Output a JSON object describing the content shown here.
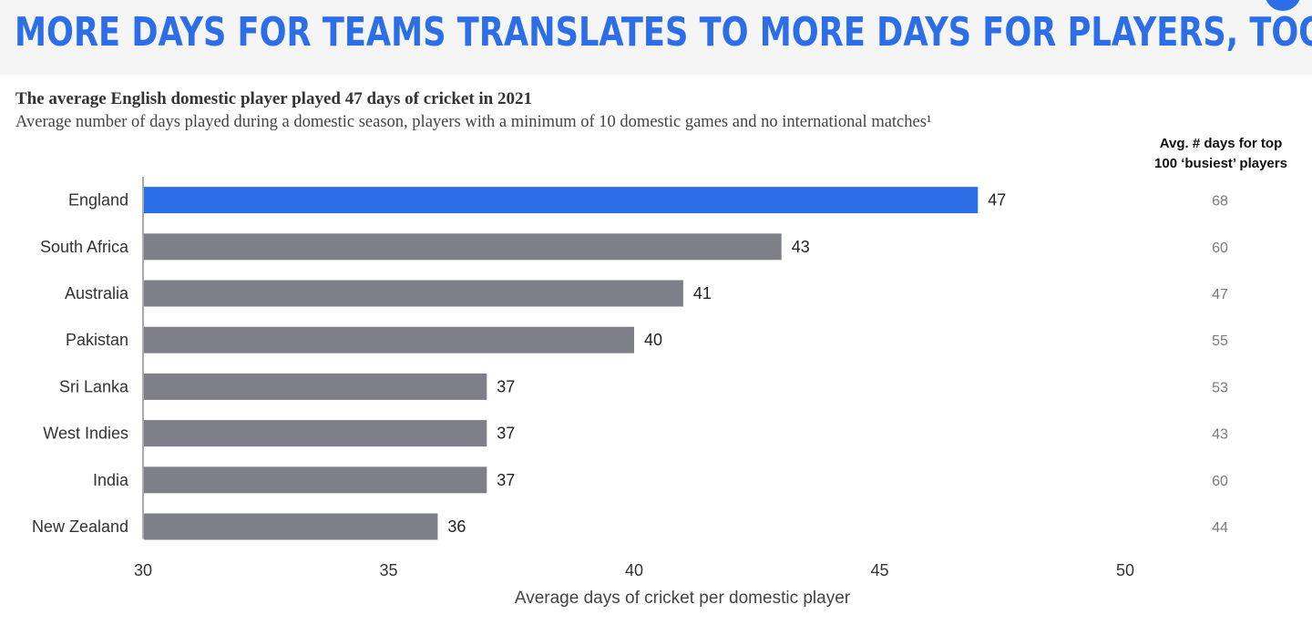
{
  "banner": {
    "headline": "MORE DAYS FOR TEAMS TRANSLATES TO MORE DAYS FOR PLAYERS, TOO"
  },
  "chart_data": {
    "type": "bar",
    "orientation": "horizontal",
    "title": "The average English domestic player played 47 days of cricket in 2021",
    "subtitle": "Average number of days played during a domestic season, players with a minimum of 10 domestic games and no international matches¹",
    "xlabel": "Average days of cricket per domestic player",
    "ylabel": "",
    "xlim": [
      30,
      50
    ],
    "x_ticks": [
      "30",
      "35",
      "40",
      "45",
      "50"
    ],
    "grid": false,
    "categories": [
      "England",
      "South Africa",
      "Australia",
      "Pakistan",
      "Sri Lanka",
      "West Indies",
      "India",
      "New Zealand"
    ],
    "values": [
      47,
      43,
      41,
      40,
      37,
      37,
      37,
      36
    ],
    "value_labels": [
      "47",
      "43",
      "41",
      "40",
      "37",
      "37",
      "37",
      "36"
    ],
    "highlight_index": 0,
    "colors": {
      "highlight": "#2b6ee8",
      "default": "#7f7f8a"
    },
    "side_column": {
      "header_line1": "Avg. # days for top",
      "header_line2": "100 ‘busiest’ players",
      "values": [
        "68",
        "60",
        "47",
        "55",
        "53",
        "43",
        "60",
        "44"
      ]
    }
  }
}
